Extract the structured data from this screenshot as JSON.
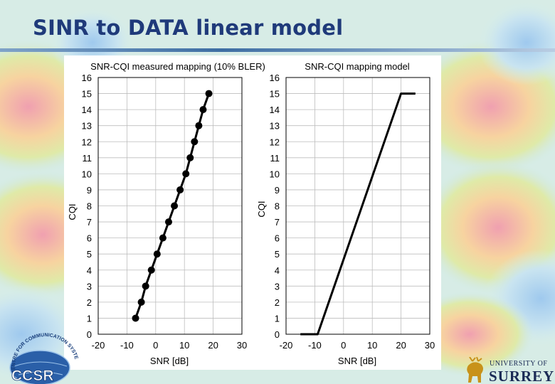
{
  "slide": {
    "title": "SINR to DATA linear model"
  },
  "logos": {
    "ccsr_ring_text": "CENTRE FOR COMMUNICATION SYSTEMS RESEARCH",
    "ccsr_text": "CCSR",
    "university_small": "UNIVERSITY OF",
    "university_big": "SURREY"
  },
  "chart_data": [
    {
      "type": "line",
      "title": "SNR-CQI measured mapping (10% BLER)",
      "xlabel": "SNR [dB]",
      "ylabel": "CQI",
      "xlim": [
        -20,
        30
      ],
      "ylim": [
        0,
        16
      ],
      "xticks": [
        -20,
        -10,
        0,
        10,
        20,
        30
      ],
      "yticks": [
        0,
        1,
        2,
        3,
        4,
        5,
        6,
        7,
        8,
        9,
        10,
        11,
        12,
        13,
        14,
        15,
        16
      ],
      "grid": true,
      "markers": true,
      "series": [
        {
          "x": [
            -7,
            -5,
            -3.5,
            -1.5,
            0.5,
            2.5,
            4.5,
            6.5,
            8.5,
            10.5,
            12,
            13.5,
            15,
            16.5,
            18.5
          ],
          "y": [
            1,
            2,
            3,
            4,
            5,
            6,
            7,
            8,
            9,
            10,
            11,
            12,
            13,
            14,
            15
          ]
        }
      ]
    },
    {
      "type": "line",
      "title": "SNR-CQI mapping model",
      "xlabel": "SNR [dB]",
      "ylabel": "CQI",
      "xlim": [
        -20,
        30
      ],
      "ylim": [
        0,
        16
      ],
      "xticks": [
        -20,
        -10,
        0,
        10,
        20,
        30
      ],
      "yticks": [
        0,
        1,
        2,
        3,
        4,
        5,
        6,
        7,
        8,
        9,
        10,
        11,
        12,
        13,
        14,
        15,
        16
      ],
      "grid": true,
      "markers": false,
      "series": [
        {
          "x": [
            -15,
            -9,
            20,
            25
          ],
          "y": [
            0,
            0,
            15,
            15
          ]
        }
      ]
    }
  ]
}
